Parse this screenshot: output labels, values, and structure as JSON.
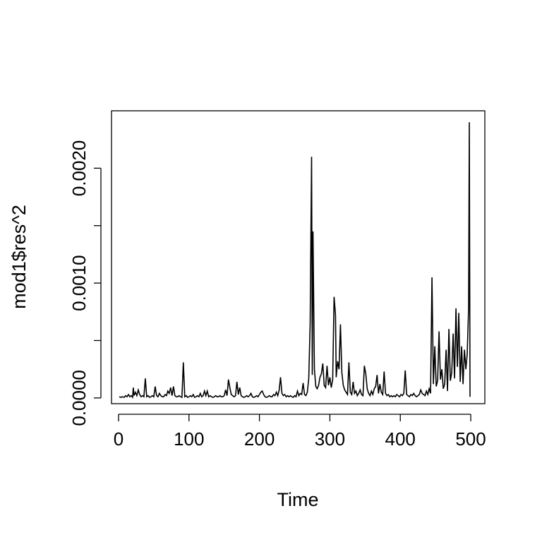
{
  "chart_data": {
    "type": "line",
    "title": "",
    "xlabel": "Time",
    "ylabel": "mod1$res^2",
    "xlim": [
      -10,
      520
    ],
    "ylim": [
      -5e-05,
      0.0025
    ],
    "x_ticks": [
      0,
      100,
      200,
      300,
      400,
      500
    ],
    "x_tick_labels": [
      "0",
      "100",
      "200",
      "300",
      "400",
      "500"
    ],
    "y_ticks": [
      0.0,
      0.0005,
      0.001,
      0.0015,
      0.002
    ],
    "y_tick_labels": [
      "0.0000",
      "",
      "0.0010",
      "",
      "0.0020"
    ],
    "grid": false,
    "legend": "none",
    "series": [
      {
        "color": "#000000",
        "points": [
          [
            1,
            1e-05
          ],
          [
            3,
            5e-06
          ],
          [
            5,
            1e-05
          ],
          [
            8,
            5e-06
          ],
          [
            10,
            2e-05
          ],
          [
            12,
            1e-05
          ],
          [
            14,
            3e-05
          ],
          [
            16,
            1e-05
          ],
          [
            18,
            2e-05
          ],
          [
            20,
            5e-06
          ],
          [
            21,
            9e-05
          ],
          [
            22,
            2e-05
          ],
          [
            24,
            5e-05
          ],
          [
            26,
            2e-05
          ],
          [
            28,
            7e-05
          ],
          [
            30,
            3e-05
          ],
          [
            32,
            1e-05
          ],
          [
            34,
            2e-05
          ],
          [
            36,
            1e-05
          ],
          [
            38,
            0.00017
          ],
          [
            40,
            1e-05
          ],
          [
            42,
            2e-05
          ],
          [
            44,
            5e-06
          ],
          [
            46,
            1e-05
          ],
          [
            48,
            2e-05
          ],
          [
            50,
            1e-05
          ],
          [
            52,
            0.0001
          ],
          [
            54,
            2e-05
          ],
          [
            56,
            1e-05
          ],
          [
            58,
            4e-05
          ],
          [
            60,
            2e-05
          ],
          [
            62,
            1e-05
          ],
          [
            64,
            1e-05
          ],
          [
            66,
            3e-05
          ],
          [
            68,
            2e-05
          ],
          [
            70,
            6e-05
          ],
          [
            72,
            4e-05
          ],
          [
            74,
            9e-05
          ],
          [
            76,
            2e-05
          ],
          [
            78,
            0.0001
          ],
          [
            80,
            2e-05
          ],
          [
            82,
            1e-05
          ],
          [
            84,
            1e-05
          ],
          [
            86,
            2e-05
          ],
          [
            88,
            1e-05
          ],
          [
            90,
            5e-06
          ],
          [
            92,
            0.00031
          ],
          [
            94,
            1e-05
          ],
          [
            96,
            2e-05
          ],
          [
            98,
            5e-06
          ],
          [
            100,
            1e-05
          ],
          [
            102,
            2e-05
          ],
          [
            104,
            1e-05
          ],
          [
            106,
            3e-05
          ],
          [
            108,
            5e-06
          ],
          [
            110,
            1e-05
          ],
          [
            112,
            2e-05
          ],
          [
            114,
            1e-05
          ],
          [
            116,
            4e-05
          ],
          [
            118,
            1e-05
          ],
          [
            120,
            2e-05
          ],
          [
            122,
            6e-05
          ],
          [
            124,
            2e-05
          ],
          [
            126,
            6e-05
          ],
          [
            128,
            1e-05
          ],
          [
            130,
            2e-05
          ],
          [
            132,
            1e-05
          ],
          [
            134,
            5e-06
          ],
          [
            136,
            1e-05
          ],
          [
            138,
            2e-05
          ],
          [
            140,
            1e-05
          ],
          [
            142,
            1e-05
          ],
          [
            144,
            2e-05
          ],
          [
            146,
            1e-05
          ],
          [
            148,
            1e-05
          ],
          [
            150,
            2e-05
          ],
          [
            152,
            7e-05
          ],
          [
            154,
            2e-05
          ],
          [
            156,
            0.00016
          ],
          [
            158,
            9e-05
          ],
          [
            160,
            3e-05
          ],
          [
            162,
            2e-05
          ],
          [
            164,
            1e-05
          ],
          [
            166,
            2e-05
          ],
          [
            168,
            0.00014
          ],
          [
            170,
            3e-05
          ],
          [
            172,
            9e-05
          ],
          [
            174,
            2e-05
          ],
          [
            176,
            1e-05
          ],
          [
            178,
            5e-06
          ],
          [
            180,
            1e-05
          ],
          [
            182,
            2e-05
          ],
          [
            184,
            1e-05
          ],
          [
            186,
            2e-05
          ],
          [
            188,
            4e-05
          ],
          [
            190,
            1e-05
          ],
          [
            192,
            5e-06
          ],
          [
            194,
            1e-05
          ],
          [
            196,
            2e-05
          ],
          [
            198,
            1e-05
          ],
          [
            200,
            3e-05
          ],
          [
            202,
            5e-05
          ],
          [
            204,
            6e-05
          ],
          [
            206,
            3e-05
          ],
          [
            208,
            1e-05
          ],
          [
            210,
            5e-06
          ],
          [
            212,
            1e-05
          ],
          [
            214,
            2e-05
          ],
          [
            216,
            1e-05
          ],
          [
            218,
            1e-05
          ],
          [
            220,
            3e-05
          ],
          [
            222,
            2e-05
          ],
          [
            224,
            5e-05
          ],
          [
            226,
            2e-05
          ],
          [
            228,
            7e-05
          ],
          [
            230,
            0.00018
          ],
          [
            232,
            4e-05
          ],
          [
            234,
            2e-05
          ],
          [
            236,
            3e-05
          ],
          [
            238,
            1e-05
          ],
          [
            240,
            2e-05
          ],
          [
            242,
            1e-05
          ],
          [
            244,
            2e-05
          ],
          [
            246,
            1e-05
          ],
          [
            248,
            5e-06
          ],
          [
            250,
            2e-05
          ],
          [
            252,
            1e-05
          ],
          [
            254,
            6e-05
          ],
          [
            256,
            2e-05
          ],
          [
            258,
            4e-05
          ],
          [
            260,
            3e-05
          ],
          [
            262,
            0.00013
          ],
          [
            264,
            3e-05
          ],
          [
            266,
            2e-05
          ],
          [
            268,
            5e-05
          ],
          [
            270,
            0.00017
          ],
          [
            272,
            0.00065
          ],
          [
            274,
            0.0021
          ],
          [
            275,
            0.0002
          ],
          [
            276,
            0.00145
          ],
          [
            278,
            0.00025
          ],
          [
            280,
            0.0001
          ],
          [
            282,
            8e-05
          ],
          [
            284,
            0.00011
          ],
          [
            286,
            0.00018
          ],
          [
            288,
            0.00021
          ],
          [
            290,
            0.0003
          ],
          [
            292,
            0.00011
          ],
          [
            294,
            9e-05
          ],
          [
            296,
            0.00028
          ],
          [
            298,
            0.00011
          ],
          [
            300,
            0.00018
          ],
          [
            302,
            9e-05
          ],
          [
            304,
            0.00016
          ],
          [
            306,
            0.00088
          ],
          [
            308,
            0.00072
          ],
          [
            309,
            0.00018
          ],
          [
            311,
            0.00032
          ],
          [
            313,
            0.00025
          ],
          [
            315,
            0.00064
          ],
          [
            317,
            0.00022
          ],
          [
            319,
            0.00011
          ],
          [
            321,
            7e-05
          ],
          [
            323,
            5e-05
          ],
          [
            325,
            3e-05
          ],
          [
            327,
            0.00031
          ],
          [
            329,
            5e-05
          ],
          [
            331,
            3e-05
          ],
          [
            333,
            0.00014
          ],
          [
            335,
            4e-05
          ],
          [
            337,
            6e-05
          ],
          [
            339,
            2e-05
          ],
          [
            341,
            4e-05
          ],
          [
            343,
            7e-05
          ],
          [
            345,
            3e-05
          ],
          [
            347,
            2e-05
          ],
          [
            349,
            0.00028
          ],
          [
            351,
            0.00021
          ],
          [
            353,
            8e-05
          ],
          [
            355,
            4e-05
          ],
          [
            357,
            2e-05
          ],
          [
            359,
            6e-05
          ],
          [
            361,
            3e-05
          ],
          [
            363,
            8e-05
          ],
          [
            365,
            0.0001
          ],
          [
            367,
            0.0002
          ],
          [
            369,
            4e-05
          ],
          [
            371,
            0.00012
          ],
          [
            373,
            5e-05
          ],
          [
            375,
            3e-05
          ],
          [
            377,
            0.00023
          ],
          [
            379,
            4e-05
          ],
          [
            381,
            2e-05
          ],
          [
            383,
            3e-05
          ],
          [
            385,
            1e-05
          ],
          [
            387,
            2e-05
          ],
          [
            389,
            1e-05
          ],
          [
            391,
            2e-05
          ],
          [
            393,
            1e-05
          ],
          [
            395,
            3e-05
          ],
          [
            397,
            2e-05
          ],
          [
            399,
            1e-05
          ],
          [
            401,
            3e-05
          ],
          [
            403,
            2e-05
          ],
          [
            405,
            4e-05
          ],
          [
            407,
            0.00024
          ],
          [
            409,
            3e-05
          ],
          [
            411,
            2e-05
          ],
          [
            413,
            1e-05
          ],
          [
            415,
            3e-05
          ],
          [
            417,
            2e-05
          ],
          [
            419,
            4e-05
          ],
          [
            421,
            2e-05
          ],
          [
            423,
            1e-05
          ],
          [
            425,
            2e-05
          ],
          [
            427,
            3e-05
          ],
          [
            429,
            7e-05
          ],
          [
            431,
            4e-05
          ],
          [
            433,
            3e-05
          ],
          [
            435,
            2e-05
          ],
          [
            437,
            6e-05
          ],
          [
            439,
            3e-05
          ],
          [
            441,
            8e-05
          ],
          [
            443,
            4e-05
          ],
          [
            445,
            0.00105
          ],
          [
            447,
            0.00012
          ],
          [
            449,
            0.00045
          ],
          [
            451,
            0.0001
          ],
          [
            453,
            0.00015
          ],
          [
            455,
            0.00058
          ],
          [
            457,
            0.00016
          ],
          [
            459,
            0.00025
          ],
          [
            461,
            8e-05
          ],
          [
            463,
            0.00012
          ],
          [
            465,
            0.00042
          ],
          [
            467,
            6e-05
          ],
          [
            469,
            0.0006
          ],
          [
            471,
            0.00015
          ],
          [
            473,
            0.00022
          ],
          [
            475,
            0.00056
          ],
          [
            477,
            0.00017
          ],
          [
            479,
            0.00078
          ],
          [
            481,
            0.00027
          ],
          [
            483,
            0.00074
          ],
          [
            485,
            0.00014
          ],
          [
            487,
            0.00045
          ],
          [
            489,
            0.00012
          ],
          [
            491,
            0.00042
          ],
          [
            493,
            0.00025
          ],
          [
            495,
            0.00038
          ],
          [
            497,
            0.00078
          ],
          [
            498,
            0.0024
          ],
          [
            499,
            1e-05
          ]
        ]
      }
    ]
  }
}
